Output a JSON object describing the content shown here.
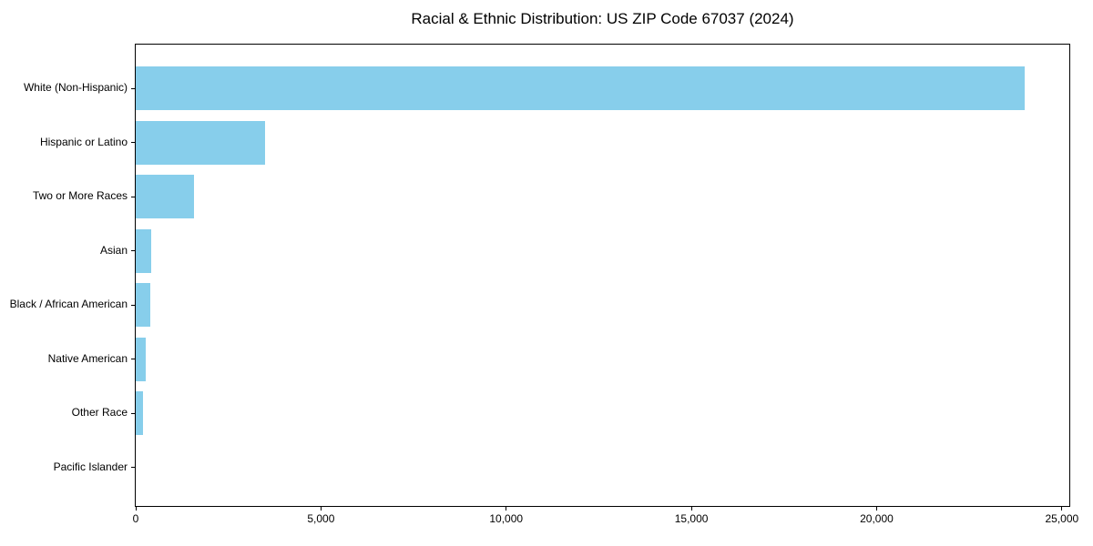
{
  "chart_data": {
    "type": "bar",
    "orientation": "horizontal",
    "title": "Racial & Ethnic Distribution: US ZIP Code 67037 (2024)",
    "categories": [
      "White (Non-Hispanic)",
      "Hispanic or Latino",
      "Two or More Races",
      "Asian",
      "Black / African American",
      "Native American",
      "Other Race",
      "Pacific Islander"
    ],
    "values": [
      24000,
      3500,
      1570,
      410,
      390,
      270,
      200,
      0
    ],
    "xlabel": "",
    "ylabel": "",
    "xlim": [
      0,
      25200
    ],
    "xticks": [
      0,
      5000,
      10000,
      15000,
      20000,
      25000
    ],
    "xtick_labels": [
      "0",
      "5,000",
      "10,000",
      "15,000",
      "20,000",
      "25,000"
    ],
    "bar_color": "#87CEEB",
    "grid": false,
    "legend": "none",
    "background_color": "#ffffff",
    "spine_color": "#000000"
  }
}
